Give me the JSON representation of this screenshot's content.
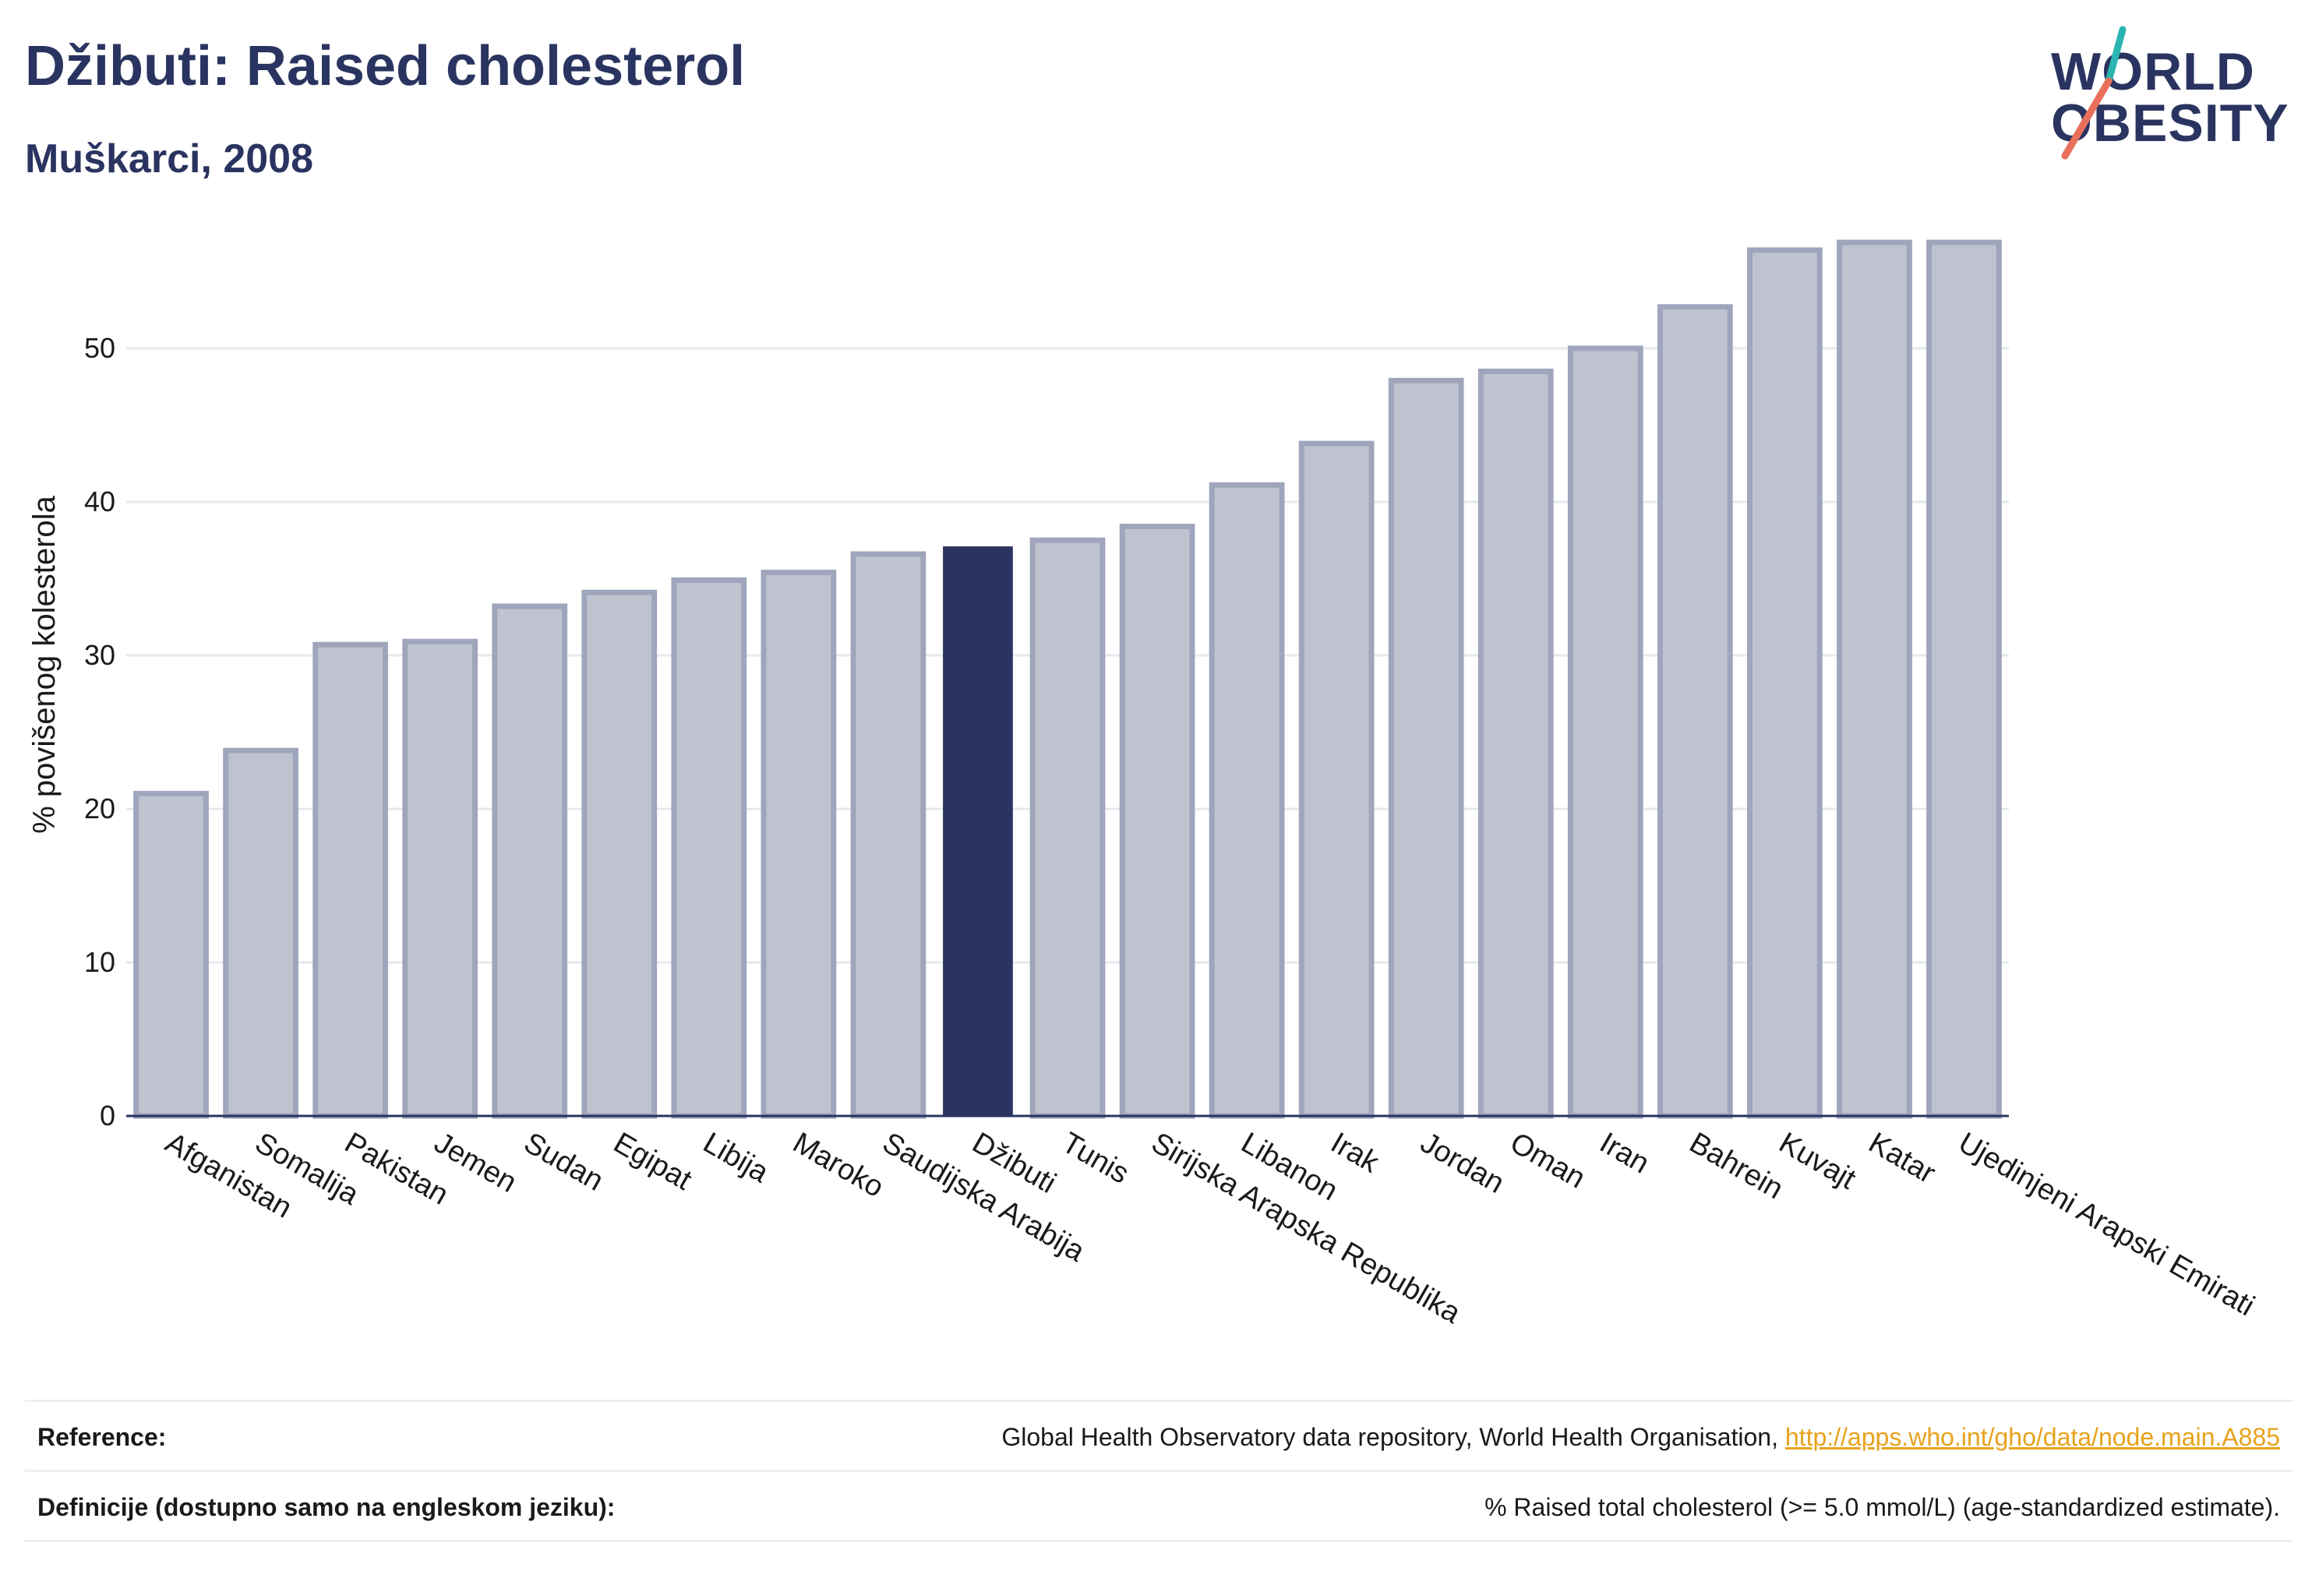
{
  "header": {
    "title": "Džibuti: Raised cholesterol",
    "subtitle": "Muškarci, 2008"
  },
  "logo": {
    "line1": "WORLD",
    "line2": "OBESITY",
    "colors": {
      "text": "#2a3460",
      "teal": "#2bb5b0",
      "coral": "#e8705a"
    }
  },
  "chart_data": {
    "type": "bar",
    "title": "Džibuti: Raised cholesterol",
    "subtitle": "Muškarci, 2008",
    "ylabel": "% povišenog kolesterola",
    "xlabel": "",
    "ylim": [
      0,
      60
    ],
    "yticks": [
      0,
      10,
      20,
      30,
      40,
      50
    ],
    "grid": true,
    "highlight": "Džibuti",
    "colors": {
      "bar": "#bfc3d0",
      "bar_edge": "#9fa5bb",
      "highlight": "#2a3460",
      "grid": "#e6e8ee"
    },
    "categories": [
      "Afganistan",
      "Somalija",
      "Pakistan",
      "Jemen",
      "Sudan",
      "Egipat",
      "Libija",
      "Maroko",
      "Saudijska Arabija",
      "Džibuti",
      "Tunis",
      "Sirijska Arapska Republika",
      "Libanon",
      "Irak",
      "Jordan",
      "Oman",
      "Iran",
      "Bahrein",
      "Kuvajt",
      "Katar",
      "Ujedinjeni Arapski Emirati"
    ],
    "values": [
      21.0,
      23.8,
      30.7,
      30.9,
      33.2,
      34.1,
      34.9,
      35.4,
      36.6,
      37.1,
      37.5,
      38.4,
      41.1,
      43.8,
      47.9,
      48.5,
      50.0,
      52.7,
      56.4,
      56.9,
      56.9
    ]
  },
  "footer": {
    "reference_label": "Reference:",
    "reference_text": "Global Health Observatory data repository, World Health Organisation,",
    "reference_link": "http://apps.who.int/gho/data/node.main.A885",
    "definition_label": "Definicije (dostupno samo na engleskom jeziku):",
    "definition_text": "% Raised total cholesterol (>= 5.0 mmol/L) (age-standardized estimate)."
  }
}
